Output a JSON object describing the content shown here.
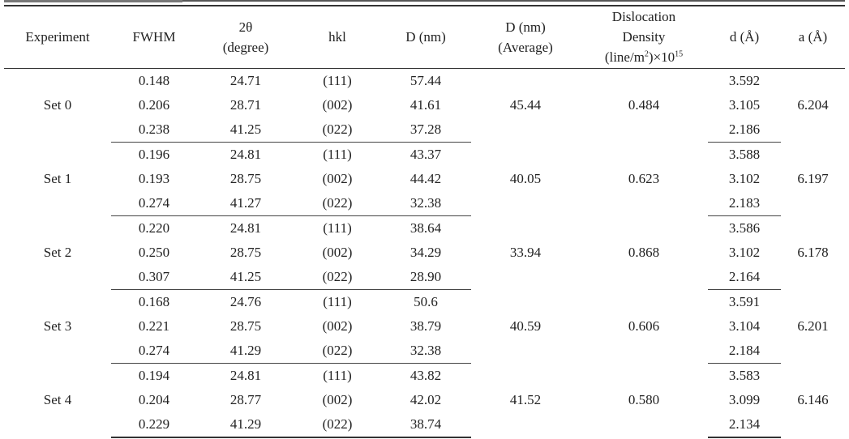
{
  "table": {
    "headers": {
      "experiment": "Experiment",
      "fwhm": "FWHM",
      "two_theta_line1": "2θ",
      "two_theta_line2": "(degree)",
      "hkl": "hkl",
      "d_nm": "D (nm)",
      "d_avg_line1": "D (nm)",
      "d_avg_line2": "(Average)",
      "disloc_line1": "Dislocation",
      "disloc_line2": "Density",
      "disloc_line3_a": "(line/m",
      "disloc_line3_sup1": "2",
      "disloc_line3_b": ")×10",
      "disloc_line3_sup2": "15",
      "d_spacing": "d (Å)",
      "a_lattice": "a (Å)"
    },
    "groups": [
      {
        "name": "Set 0",
        "d_avg": "45.44",
        "dislocation": "0.484",
        "a": "6.204",
        "rows": [
          {
            "fwhm": "0.148",
            "two_theta": "24.71",
            "hkl": "(111)",
            "d": "57.44",
            "d_spacing": "3.592"
          },
          {
            "fwhm": "0.206",
            "two_theta": "28.71",
            "hkl": "(002)",
            "d": "41.61",
            "d_spacing": "3.105"
          },
          {
            "fwhm": "0.238",
            "two_theta": "41.25",
            "hkl": "(022)",
            "d": "37.28",
            "d_spacing": "2.186"
          }
        ]
      },
      {
        "name": "Set 1",
        "d_avg": "40.05",
        "dislocation": "0.623",
        "a": "6.197",
        "rows": [
          {
            "fwhm": "0.196",
            "two_theta": "24.81",
            "hkl": "(111)",
            "d": "43.37",
            "d_spacing": "3.588"
          },
          {
            "fwhm": "0.193",
            "two_theta": "28.75",
            "hkl": "(002)",
            "d": "44.42",
            "d_spacing": "3.102"
          },
          {
            "fwhm": "0.274",
            "two_theta": "41.27",
            "hkl": "(022)",
            "d": "32.38",
            "d_spacing": "2.183"
          }
        ]
      },
      {
        "name": "Set 2",
        "d_avg": "33.94",
        "dislocation": "0.868",
        "a": "6.178",
        "rows": [
          {
            "fwhm": "0.220",
            "two_theta": "24.81",
            "hkl": "(111)",
            "d": "38.64",
            "d_spacing": "3.586"
          },
          {
            "fwhm": "0.250",
            "two_theta": "28.75",
            "hkl": "(002)",
            "d": "34.29",
            "d_spacing": "3.102"
          },
          {
            "fwhm": "0.307",
            "two_theta": "41.25",
            "hkl": "(022)",
            "d": "28.90",
            "d_spacing": "2.164"
          }
        ]
      },
      {
        "name": "Set 3",
        "d_avg": "40.59",
        "dislocation": "0.606",
        "a": "6.201",
        "rows": [
          {
            "fwhm": "0.168",
            "two_theta": "24.76",
            "hkl": "(111)",
            "d": "50.6",
            "d_spacing": "3.591"
          },
          {
            "fwhm": "0.221",
            "two_theta": "28.75",
            "hkl": "(002)",
            "d": "38.79",
            "d_spacing": "3.104"
          },
          {
            "fwhm": "0.274",
            "two_theta": "41.29",
            "hkl": "(022)",
            "d": "32.38",
            "d_spacing": "2.184"
          }
        ]
      },
      {
        "name": "Set 4",
        "d_avg": "41.52",
        "dislocation": "0.580",
        "a": "6.146",
        "rows": [
          {
            "fwhm": "0.194",
            "two_theta": "24.81",
            "hkl": "(111)",
            "d": "43.82",
            "d_spacing": "3.583"
          },
          {
            "fwhm": "0.204",
            "two_theta": "28.77",
            "hkl": "(002)",
            "d": "42.02",
            "d_spacing": "3.099"
          },
          {
            "fwhm": "0.229",
            "two_theta": "41.29",
            "hkl": "(022)",
            "d": "38.74",
            "d_spacing": "2.134"
          }
        ]
      }
    ]
  }
}
